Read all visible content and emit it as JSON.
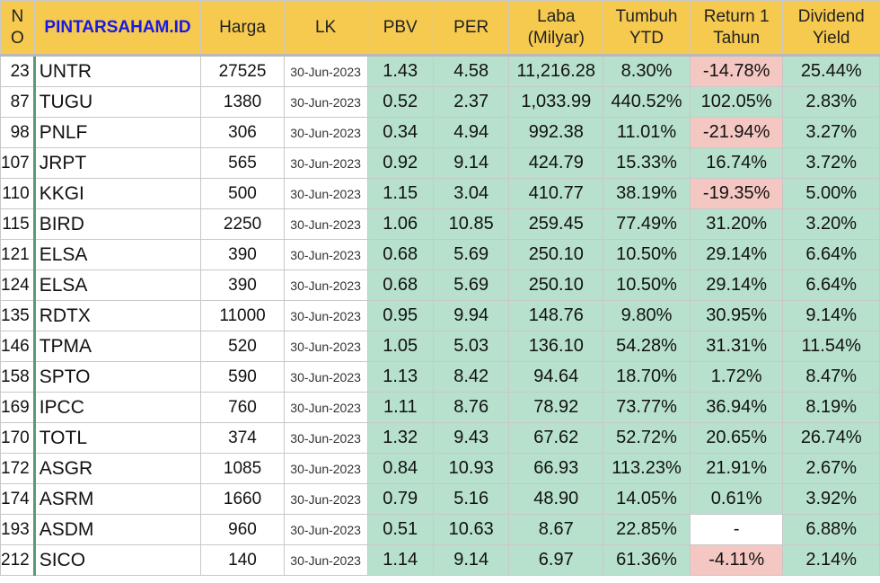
{
  "headers": {
    "no": "N\nO",
    "brand": "PINTARSAHAM.ID",
    "harga": "Harga",
    "lk": "LK",
    "pbv": "PBV",
    "per": "PER",
    "laba": "Laba\n(Milyar)",
    "tumbuh": "Tumbuh\nYTD",
    "return": "Return 1\nTahun",
    "dividend": "Dividend\nYield"
  },
  "colors": {
    "header_bg": "#f6c94f",
    "brand_text": "#1a1ae0",
    "positive_cell": "#b7e1cd",
    "negative_cell": "#f4c7c3"
  },
  "rows": [
    {
      "no": "23",
      "code": "UNTR",
      "harga": "27525",
      "lk": "30-Jun-2023",
      "pbv": "1.43",
      "per": "4.58",
      "laba": "11,216.28",
      "tumbuh": "8.30%",
      "ret": "-14.78%",
      "ret_neg": true,
      "div": "25.44%"
    },
    {
      "no": "87",
      "code": "TUGU",
      "harga": "1380",
      "lk": "30-Jun-2023",
      "pbv": "0.52",
      "per": "2.37",
      "laba": "1,033.99",
      "tumbuh": "440.52%",
      "ret": "102.05%",
      "ret_neg": false,
      "div": "2.83%"
    },
    {
      "no": "98",
      "code": "PNLF",
      "harga": "306",
      "lk": "30-Jun-2023",
      "pbv": "0.34",
      "per": "4.94",
      "laba": "992.38",
      "tumbuh": "11.01%",
      "ret": "-21.94%",
      "ret_neg": true,
      "div": "3.27%"
    },
    {
      "no": "107",
      "code": "JRPT",
      "harga": "565",
      "lk": "30-Jun-2023",
      "pbv": "0.92",
      "per": "9.14",
      "laba": "424.79",
      "tumbuh": "15.33%",
      "ret": "16.74%",
      "ret_neg": false,
      "div": "3.72%"
    },
    {
      "no": "110",
      "code": "KKGI",
      "harga": "500",
      "lk": "30-Jun-2023",
      "pbv": "1.15",
      "per": "3.04",
      "laba": "410.77",
      "tumbuh": "38.19%",
      "ret": "-19.35%",
      "ret_neg": true,
      "div": "5.00%"
    },
    {
      "no": "115",
      "code": "BIRD",
      "harga": "2250",
      "lk": "30-Jun-2023",
      "pbv": "1.06",
      "per": "10.85",
      "laba": "259.45",
      "tumbuh": "77.49%",
      "ret": "31.20%",
      "ret_neg": false,
      "div": "3.20%"
    },
    {
      "no": "121",
      "code": "ELSA",
      "harga": "390",
      "lk": "30-Jun-2023",
      "pbv": "0.68",
      "per": "5.69",
      "laba": "250.10",
      "tumbuh": "10.50%",
      "ret": "29.14%",
      "ret_neg": false,
      "div": "6.64%"
    },
    {
      "no": "124",
      "code": "ELSA",
      "harga": "390",
      "lk": "30-Jun-2023",
      "pbv": "0.68",
      "per": "5.69",
      "laba": "250.10",
      "tumbuh": "10.50%",
      "ret": "29.14%",
      "ret_neg": false,
      "div": "6.64%"
    },
    {
      "no": "135",
      "code": "RDTX",
      "harga": "11000",
      "lk": "30-Jun-2023",
      "pbv": "0.95",
      "per": "9.94",
      "laba": "148.76",
      "tumbuh": "9.80%",
      "ret": "30.95%",
      "ret_neg": false,
      "div": "9.14%"
    },
    {
      "no": "146",
      "code": "TPMA",
      "harga": "520",
      "lk": "30-Jun-2023",
      "pbv": "1.05",
      "per": "5.03",
      "laba": "136.10",
      "tumbuh": "54.28%",
      "ret": "31.31%",
      "ret_neg": false,
      "div": "11.54%"
    },
    {
      "no": "158",
      "code": "SPTO",
      "harga": "590",
      "lk": "30-Jun-2023",
      "pbv": "1.13",
      "per": "8.42",
      "laba": "94.64",
      "tumbuh": "18.70%",
      "ret": "1.72%",
      "ret_neg": false,
      "div": "8.47%"
    },
    {
      "no": "169",
      "code": "IPCC",
      "harga": "760",
      "lk": "30-Jun-2023",
      "pbv": "1.11",
      "per": "8.76",
      "laba": "78.92",
      "tumbuh": "73.77%",
      "ret": "36.94%",
      "ret_neg": false,
      "div": "8.19%"
    },
    {
      "no": "170",
      "code": "TOTL",
      "harga": "374",
      "lk": "30-Jun-2023",
      "pbv": "1.32",
      "per": "9.43",
      "laba": "67.62",
      "tumbuh": "52.72%",
      "ret": "20.65%",
      "ret_neg": false,
      "div": "26.74%"
    },
    {
      "no": "172",
      "code": "ASGR",
      "harga": "1085",
      "lk": "30-Jun-2023",
      "pbv": "0.84",
      "per": "10.93",
      "laba": "66.93",
      "tumbuh": "113.23%",
      "ret": "21.91%",
      "ret_neg": false,
      "div": "2.67%"
    },
    {
      "no": "174",
      "code": "ASRM",
      "harga": "1660",
      "lk": "30-Jun-2023",
      "pbv": "0.79",
      "per": "5.16",
      "laba": "48.90",
      "tumbuh": "14.05%",
      "ret": "0.61%",
      "ret_neg": false,
      "div": "3.92%"
    },
    {
      "no": "193",
      "code": "ASDM",
      "harga": "960",
      "lk": "30-Jun-2023",
      "pbv": "0.51",
      "per": "10.63",
      "laba": "8.67",
      "tumbuh": "22.85%",
      "ret": "-",
      "ret_neg": false,
      "ret_plain": true,
      "div": "6.88%"
    },
    {
      "no": "212",
      "code": "SICO",
      "harga": "140",
      "lk": "30-Jun-2023",
      "pbv": "1.14",
      "per": "9.14",
      "laba": "6.97",
      "tumbuh": "61.36%",
      "ret": "-4.11%",
      "ret_neg": true,
      "div": "2.14%"
    }
  ]
}
